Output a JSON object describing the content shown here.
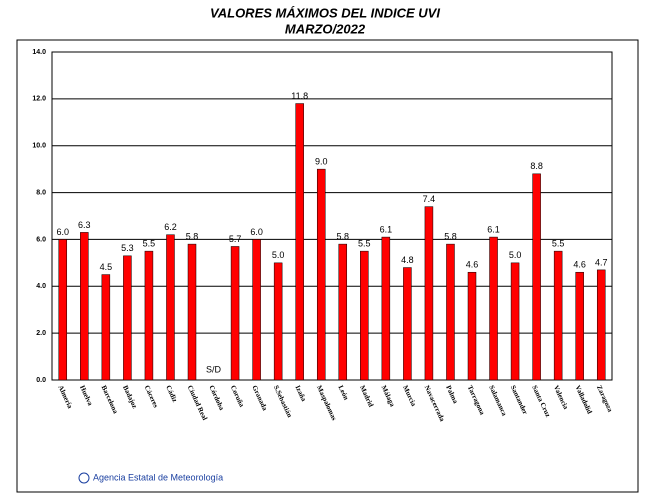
{
  "chart_data": {
    "type": "bar",
    "title": "VALORES MÁXIMOS DEL INDICE UVI",
    "subtitle": "MARZO/2022",
    "footer": "Agencia Estatal de Meteorología",
    "categories": [
      "Almería",
      "Huelva",
      "Barcelona",
      "Badajoz",
      "Cáceres",
      "Cádiz",
      "Ciudad Real",
      "Córdoba",
      "Coruña",
      "Granada",
      "S.Sebastián",
      "Izaña",
      "Maspalomas",
      "León",
      "Madrid",
      "Málaga",
      "Murcia",
      "Navacerrada",
      "Palma",
      "Tarragona",
      "Salamanca",
      "Santander",
      "Santa Cruz",
      "Valencia",
      "Valladolid",
      "Zaragoza"
    ],
    "values": [
      6.0,
      6.3,
      4.5,
      5.3,
      5.5,
      6.2,
      5.8,
      null,
      5.7,
      6.0,
      5.0,
      11.8,
      9.0,
      5.8,
      5.5,
      6.1,
      4.8,
      7.4,
      5.8,
      4.6,
      6.1,
      5.0,
      8.8,
      5.5,
      4.6,
      4.7
    ],
    "value_labels": [
      "6.0",
      "6.3",
      "4.5",
      "5.3",
      "5.5",
      "6.2",
      "5.8",
      "S/D",
      "5.7",
      "6.0",
      "5.0",
      "11.8",
      "9.0",
      "5.8",
      "5.5",
      "6.1",
      "4.8",
      "7.4",
      "5.8",
      "4.6",
      "6.1",
      "5.0",
      "8.8",
      "5.5",
      "4.6",
      "4.7"
    ],
    "color": "#ff0000",
    "ylim": [
      0,
      14
    ],
    "yticks": [
      {
        "value": 0,
        "label": "0.0"
      },
      {
        "value": 2,
        "label": "2.0"
      },
      {
        "value": 4,
        "label": "4.0"
      },
      {
        "value": 6,
        "label": "6.0"
      },
      {
        "value": 8,
        "label": "8.0"
      },
      {
        "value": 10,
        "label": "10.0"
      },
      {
        "value": 12,
        "label": "12.0"
      },
      {
        "value": 14,
        "label": "14.0"
      }
    ],
    "grid": true
  }
}
